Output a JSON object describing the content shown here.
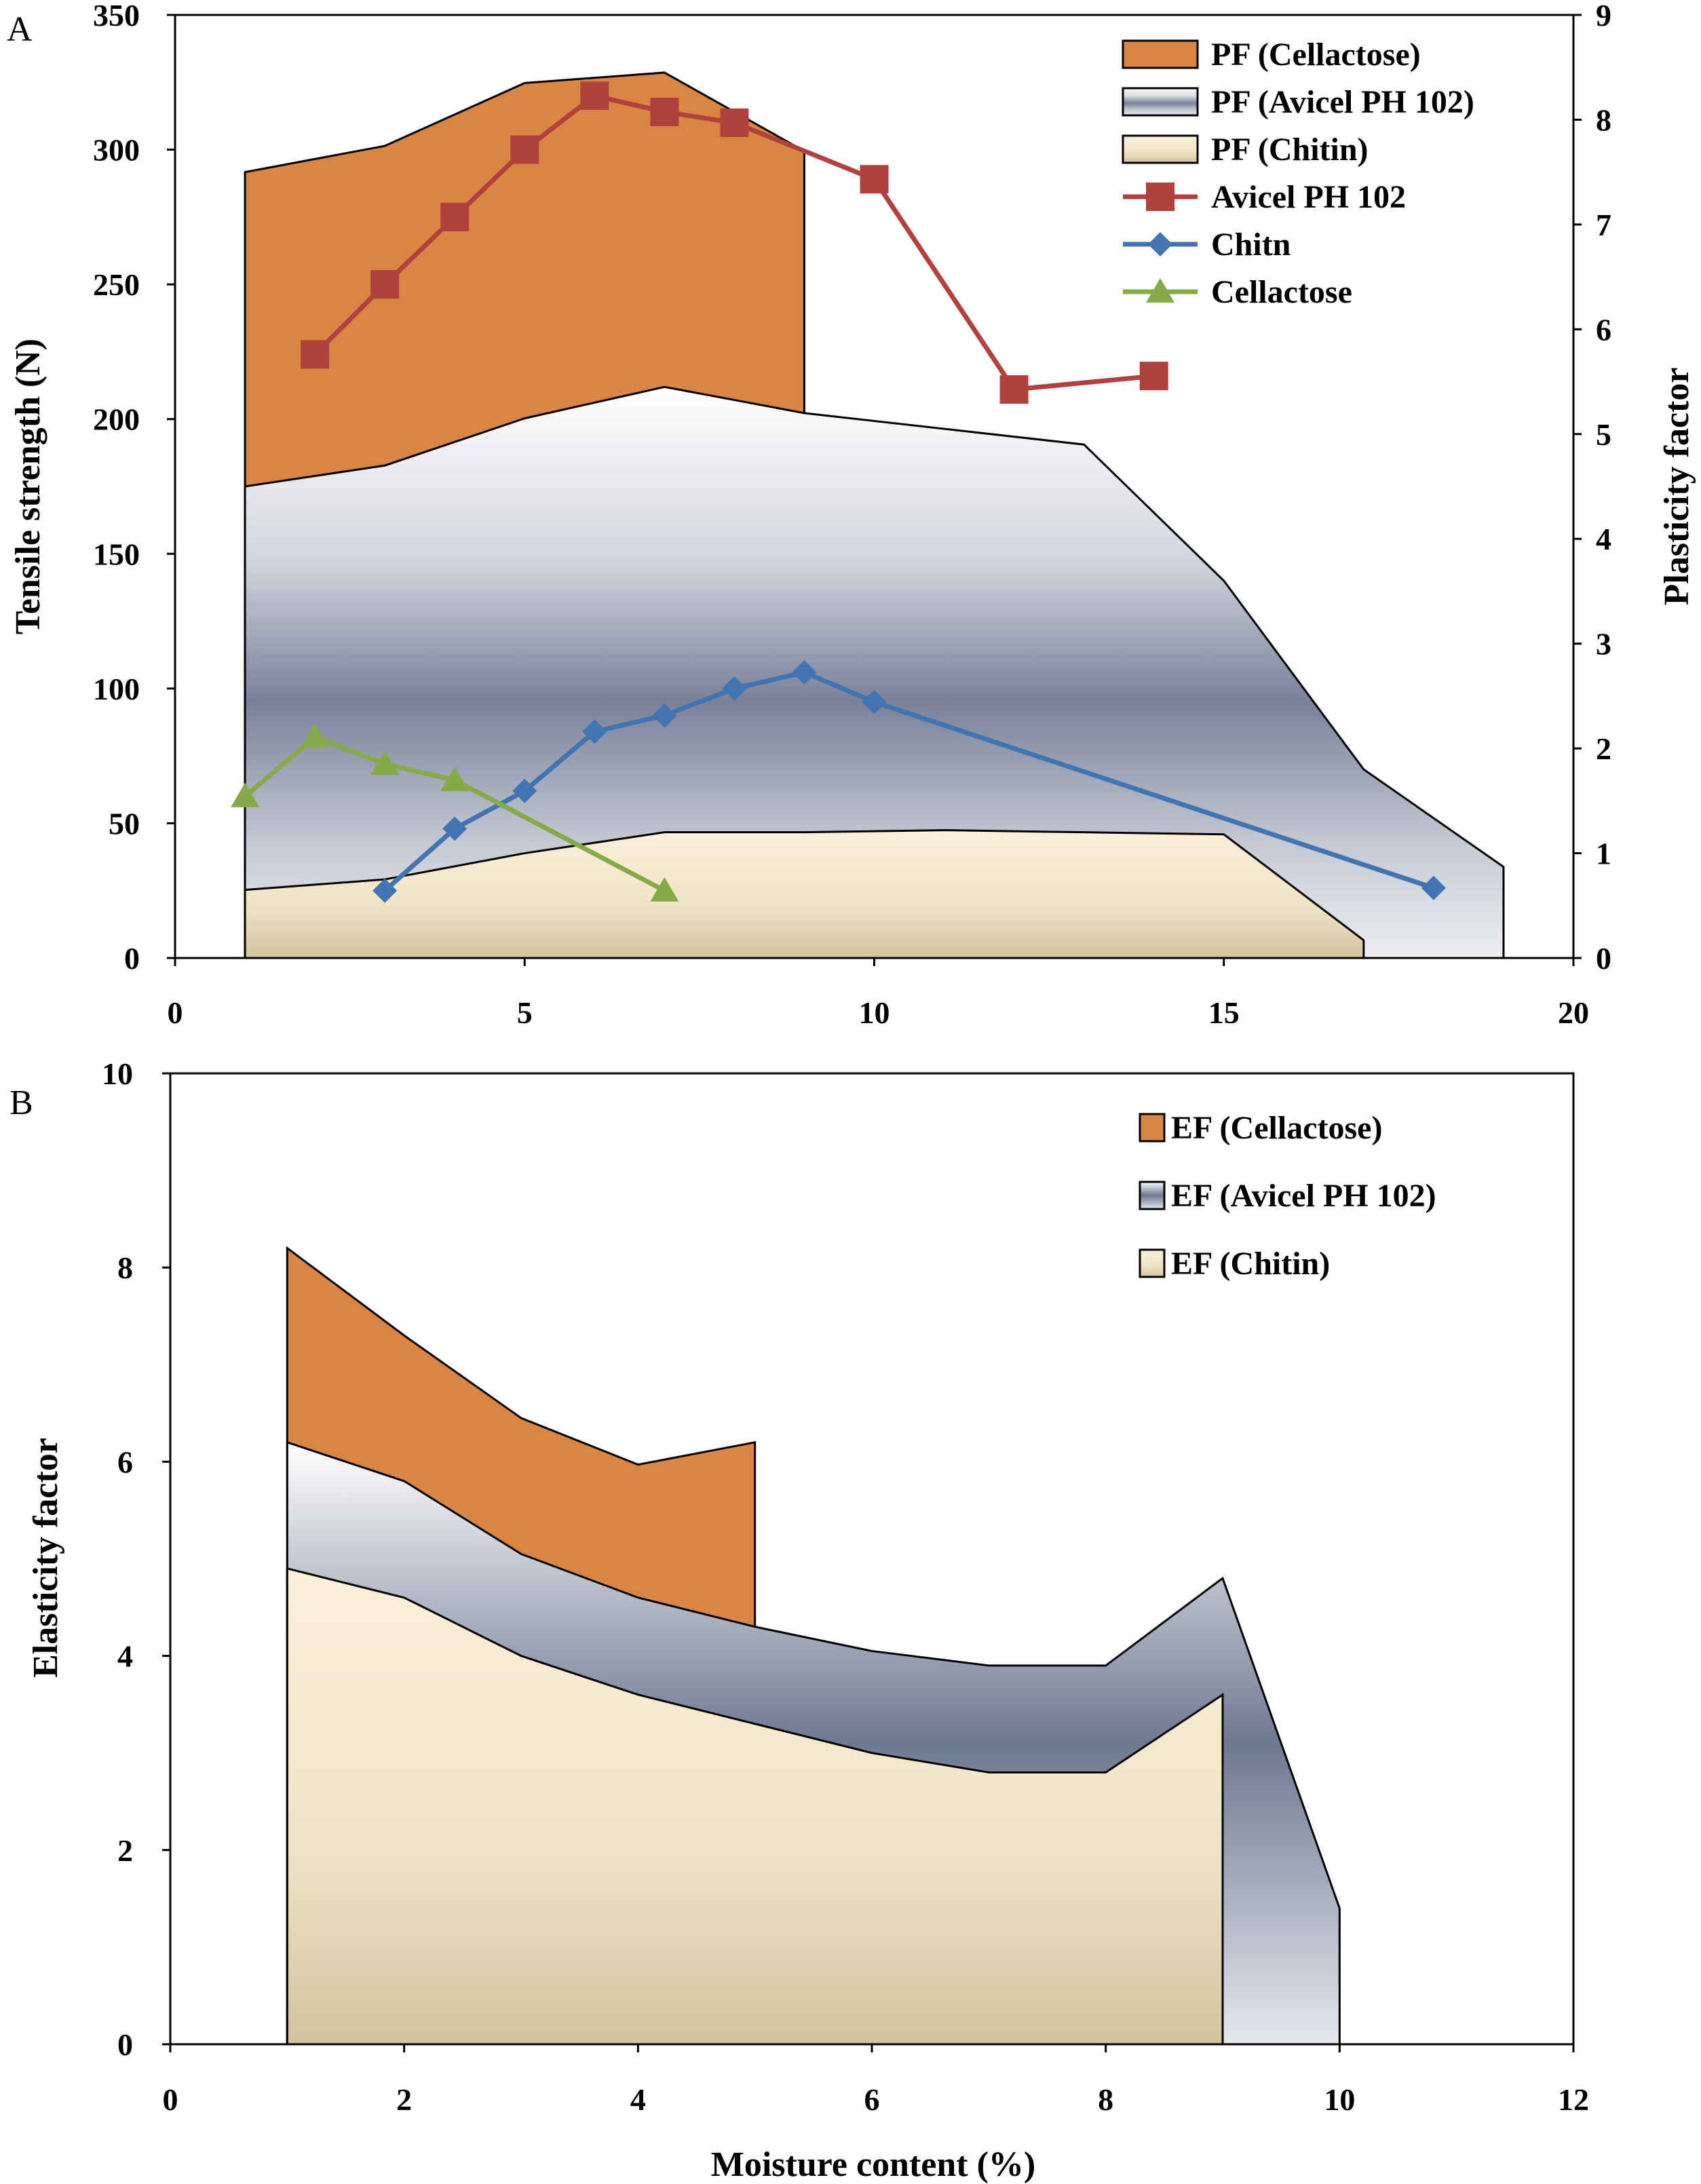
{
  "chart_data": [
    {
      "panel": "A",
      "type": "area+line",
      "xlabel": "",
      "ylabel": "Tensile strength (N)",
      "y2label": "Plasticity factor",
      "xlim": [
        0,
        20
      ],
      "ylim": [
        0,
        350
      ],
      "y2lim": [
        0,
        9
      ],
      "xticks": [
        "0",
        "5",
        "10",
        "15",
        "20"
      ],
      "yticks": [
        "0",
        "50",
        "100",
        "150",
        "200",
        "250",
        "300",
        "350"
      ],
      "y2ticks": [
        "0",
        "1",
        "2",
        "3",
        "4",
        "5",
        "6",
        "7",
        "8",
        "9"
      ],
      "areas": [
        {
          "name": "PF (Cellactose)",
          "color": "#d98543",
          "x": [
            1,
            3,
            5,
            7,
            9
          ],
          "y": [
            7.5,
            7.75,
            8.35,
            8.45,
            7.7
          ]
        },
        {
          "name": "PF (Avicel PH 102)",
          "color": "#6e7890",
          "x": [
            1,
            3,
            5,
            7,
            9,
            11,
            13,
            15,
            17,
            19
          ],
          "y": [
            4.5,
            4.7,
            5.15,
            5.45,
            5.2,
            5.05,
            4.9,
            3.6,
            1.8,
            0.87
          ]
        },
        {
          "name": "PF (Chitin)",
          "color": "#f4e6c6",
          "x": [
            1,
            3,
            5,
            7,
            9,
            11,
            13,
            15,
            17
          ],
          "y": [
            0.65,
            0.75,
            1.0,
            1.2,
            1.2,
            1.22,
            1.2,
            1.18,
            0.17
          ]
        }
      ],
      "series": [
        {
          "name": "Avicel PH 102",
          "color": "#b0413e",
          "marker": "square",
          "x": [
            2,
            3,
            4,
            5,
            6,
            7,
            8,
            10,
            12,
            14
          ],
          "y": [
            224,
            250,
            275,
            300,
            320,
            314,
            310,
            289,
            211,
            216
          ]
        },
        {
          "name": "Chitn",
          "color": "#4174b0",
          "marker": "diamond",
          "x": [
            3,
            4,
            5,
            6,
            7,
            8,
            9,
            10,
            18
          ],
          "y": [
            25,
            48,
            62,
            84,
            90,
            100,
            106,
            95,
            26
          ]
        },
        {
          "name": "Cellactose",
          "color": "#86a94a",
          "marker": "triangle",
          "x": [
            1,
            2,
            3,
            4,
            7
          ],
          "y": [
            60,
            82,
            72,
            66,
            25
          ]
        }
      ]
    },
    {
      "panel": "B",
      "type": "area",
      "xlabel": "Moisture content (%)",
      "ylabel": "Elasticity factor",
      "xlim": [
        0,
        12
      ],
      "ylim": [
        0,
        10
      ],
      "xticks": [
        "0",
        "2",
        "4",
        "6",
        "8",
        "10",
        "12"
      ],
      "yticks": [
        "0",
        "2",
        "4",
        "6",
        "8",
        "10"
      ],
      "areas": [
        {
          "name": "EF (Cellactose)",
          "color": "#d98543",
          "x": [
            1,
            2,
            3,
            4,
            5
          ],
          "y": [
            8.2,
            7.3,
            6.45,
            5.97,
            6.2
          ]
        },
        {
          "name": "EF (Avicel PH 102)",
          "color": "#6e7890",
          "x": [
            1,
            2,
            3,
            4,
            5,
            6,
            7,
            8,
            9,
            10
          ],
          "y": [
            6.2,
            5.8,
            5.05,
            4.6,
            4.3,
            4.05,
            3.9,
            3.9,
            4.8,
            1.4
          ]
        },
        {
          "name": "EF (Chitin)",
          "color": "#f4e6c6",
          "x": [
            1,
            2,
            3,
            4,
            5,
            6,
            7,
            8,
            9
          ],
          "y": [
            4.9,
            4.6,
            4.0,
            3.6,
            3.3,
            3.0,
            2.8,
            2.8,
            3.6
          ]
        }
      ]
    }
  ],
  "labels": {
    "panel_a": "A",
    "panel_b": "B"
  }
}
